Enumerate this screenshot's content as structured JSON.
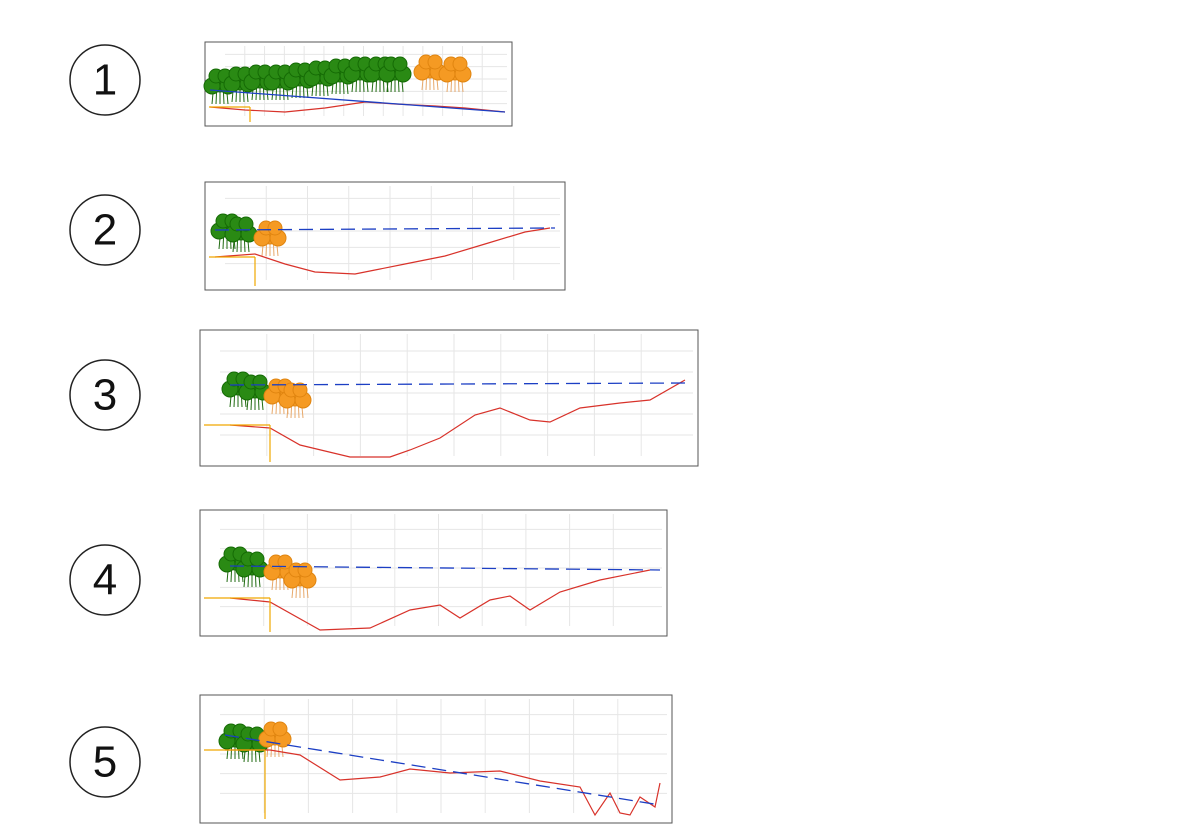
{
  "panels": [
    {
      "number": "1"
    },
    {
      "number": "2"
    },
    {
      "number": "3"
    },
    {
      "number": "4"
    },
    {
      "number": "5"
    }
  ]
}
